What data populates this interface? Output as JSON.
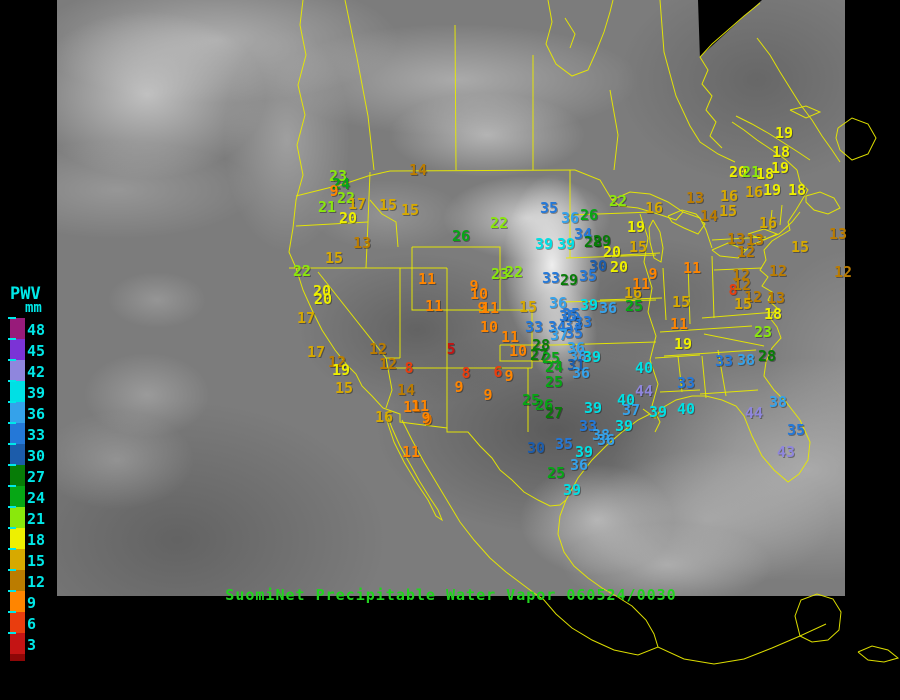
{
  "title_bar": {
    "text": "SuomiNet Precipitable Water Vapor 060524/0030",
    "color": "#22d31f"
  },
  "map": {
    "outline_color": "#e8e900",
    "background_shade": "grayscale satellite infrared composite"
  },
  "legend": {
    "title": "PWV",
    "units": "mm",
    "label_color": "#00e8e8",
    "underflow_color": "#8e0707",
    "entries": [
      {
        "value": 48,
        "color": "#981b7a"
      },
      {
        "value": 45,
        "color": "#7b33d6"
      },
      {
        "value": 42,
        "color": "#8f86dd"
      },
      {
        "value": 39,
        "color": "#00e0e4"
      },
      {
        "value": 36,
        "color": "#35a2ea"
      },
      {
        "value": 33,
        "color": "#2478d8"
      },
      {
        "value": 30,
        "color": "#1c5caa"
      },
      {
        "value": 27,
        "color": "#077c07"
      },
      {
        "value": 24,
        "color": "#06a715"
      },
      {
        "value": 21,
        "color": "#8ae80c"
      },
      {
        "value": 18,
        "color": "#eef000"
      },
      {
        "value": 15,
        "color": "#d7a900"
      },
      {
        "value": 12,
        "color": "#bb7c00"
      },
      {
        "value": 9,
        "color": "#ff8500"
      },
      {
        "value": 6,
        "color": "#e93d0e"
      },
      {
        "value": 3,
        "color": "#c41414"
      }
    ]
  },
  "stations": {
    "columns": [
      "value_mm",
      "x",
      "y"
    ],
    "rows": [
      [
        23,
        338,
        176
      ],
      [
        24,
        341,
        184
      ],
      [
        9,
        334,
        191
      ],
      [
        22,
        346,
        198
      ],
      [
        21,
        327,
        207
      ],
      [
        17,
        357,
        204
      ],
      [
        20,
        348,
        218
      ],
      [
        15,
        388,
        205
      ],
      [
        15,
        410,
        210
      ],
      [
        14,
        418,
        170
      ],
      [
        26,
        461,
        236
      ],
      [
        13,
        362,
        243
      ],
      [
        15,
        334,
        258
      ],
      [
        22,
        302,
        271
      ],
      [
        20,
        322,
        291
      ],
      [
        20,
        323,
        299
      ],
      [
        17,
        306,
        318
      ],
      [
        17,
        316,
        352
      ],
      [
        12,
        337,
        362
      ],
      [
        19,
        341,
        370
      ],
      [
        15,
        344,
        388
      ],
      [
        12,
        378,
        349
      ],
      [
        12,
        388,
        364
      ],
      [
        8,
        409,
        368
      ],
      [
        14,
        406,
        390
      ],
      [
        16,
        384,
        417
      ],
      [
        11,
        412,
        407
      ],
      [
        11,
        420,
        406
      ],
      [
        9,
        428,
        420
      ],
      [
        11,
        411,
        452
      ],
      [
        11,
        434,
        306
      ],
      [
        11,
        427,
        279
      ],
      [
        23,
        500,
        274
      ],
      [
        22,
        514,
        272
      ],
      [
        9,
        474,
        286
      ],
      [
        10,
        479,
        294
      ],
      [
        9,
        482,
        308
      ],
      [
        11,
        490,
        308
      ],
      [
        10,
        489,
        327
      ],
      [
        11,
        510,
        337
      ],
      [
        5,
        451,
        349
      ],
      [
        10,
        518,
        351
      ],
      [
        8,
        466,
        373
      ],
      [
        6,
        498,
        372
      ],
      [
        9,
        509,
        376
      ],
      [
        9,
        459,
        387
      ],
      [
        9,
        488,
        395
      ],
      [
        9,
        426,
        418
      ],
      [
        35,
        549,
        208
      ],
      [
        36,
        570,
        218
      ],
      [
        26,
        589,
        215
      ],
      [
        22,
        618,
        201
      ],
      [
        22,
        499,
        223
      ],
      [
        39,
        544,
        244
      ],
      [
        39,
        566,
        244
      ],
      [
        34,
        583,
        234
      ],
      [
        28,
        593,
        242
      ],
      [
        29,
        602,
        241
      ],
      [
        20,
        612,
        252
      ],
      [
        19,
        636,
        227
      ],
      [
        15,
        638,
        247
      ],
      [
        16,
        654,
        208
      ],
      [
        30,
        598,
        266
      ],
      [
        20,
        619,
        267
      ],
      [
        33,
        551,
        278
      ],
      [
        29,
        569,
        280
      ],
      [
        35,
        588,
        276
      ],
      [
        15,
        528,
        307
      ],
      [
        16,
        633,
        293
      ],
      [
        11,
        641,
        284
      ],
      [
        9,
        653,
        274
      ],
      [
        11,
        692,
        268
      ],
      [
        15,
        681,
        302
      ],
      [
        36,
        558,
        303
      ],
      [
        39,
        589,
        305
      ],
      [
        36,
        608,
        308
      ],
      [
        25,
        634,
        306
      ],
      [
        35,
        571,
        314
      ],
      [
        33,
        583,
        322
      ],
      [
        33,
        534,
        327
      ],
      [
        34,
        557,
        327
      ],
      [
        33,
        573,
        325
      ],
      [
        35,
        568,
        316
      ],
      [
        37,
        559,
        335
      ],
      [
        35,
        574,
        333
      ],
      [
        28,
        541,
        345
      ],
      [
        27,
        539,
        355
      ],
      [
        25,
        551,
        358
      ],
      [
        36,
        576,
        348
      ],
      [
        38,
        578,
        356
      ],
      [
        39,
        592,
        357
      ],
      [
        24,
        554,
        367
      ],
      [
        31,
        576,
        365
      ],
      [
        36,
        581,
        373
      ],
      [
        25,
        554,
        382
      ],
      [
        25,
        531,
        400
      ],
      [
        26,
        544,
        405
      ],
      [
        27,
        554,
        413
      ],
      [
        39,
        593,
        408
      ],
      [
        40,
        626,
        400
      ],
      [
        37,
        631,
        410
      ],
      [
        33,
        588,
        426
      ],
      [
        39,
        624,
        426
      ],
      [
        38,
        601,
        435
      ],
      [
        36,
        606,
        440
      ],
      [
        35,
        564,
        444
      ],
      [
        30,
        536,
        448
      ],
      [
        39,
        584,
        452
      ],
      [
        36,
        579,
        465
      ],
      [
        25,
        556,
        473
      ],
      [
        39,
        572,
        490
      ],
      [
        40,
        644,
        368
      ],
      [
        44,
        644,
        391
      ],
      [
        33,
        686,
        383
      ],
      [
        39,
        658,
        412
      ],
      [
        40,
        686,
        409
      ],
      [
        19,
        683,
        344
      ],
      [
        11,
        679,
        324
      ],
      [
        23,
        763,
        332
      ],
      [
        33,
        724,
        361
      ],
      [
        38,
        746,
        360
      ],
      [
        28,
        767,
        356
      ],
      [
        38,
        778,
        402
      ],
      [
        44,
        754,
        413
      ],
      [
        35,
        796,
        430
      ],
      [
        43,
        786,
        452
      ],
      [
        12,
        741,
        275
      ],
      [
        12,
        778,
        271
      ],
      [
        8,
        733,
        290
      ],
      [
        12,
        742,
        285
      ],
      [
        12,
        753,
        297
      ],
      [
        15,
        743,
        304
      ],
      [
        13,
        776,
        298
      ],
      [
        18,
        773,
        314
      ],
      [
        13,
        695,
        198
      ],
      [
        16,
        729,
        196
      ],
      [
        16,
        754,
        192
      ],
      [
        19,
        772,
        190
      ],
      [
        14,
        709,
        216
      ],
      [
        15,
        728,
        211
      ],
      [
        16,
        768,
        223
      ],
      [
        13,
        736,
        239
      ],
      [
        13,
        755,
        240
      ],
      [
        12,
        746,
        252
      ],
      [
        20,
        738,
        172
      ],
      [
        21,
        751,
        172
      ],
      [
        18,
        765,
        174
      ],
      [
        19,
        780,
        168
      ],
      [
        18,
        781,
        152
      ],
      [
        19,
        784,
        133
      ],
      [
        18,
        797,
        190
      ],
      [
        15,
        800,
        247
      ],
      [
        13,
        838,
        234
      ],
      [
        12,
        843,
        272
      ]
    ]
  }
}
